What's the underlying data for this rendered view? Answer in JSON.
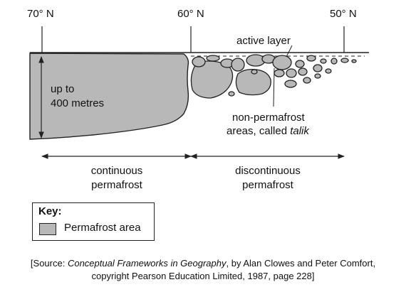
{
  "latitudes": {
    "lat_70": "70° N",
    "lat_60": "60° N",
    "lat_50": "50° N"
  },
  "labels": {
    "active_layer": "active layer",
    "depth_line1": "up to",
    "depth_line2": "400 metres",
    "talik_line1": "non-permafrost",
    "talik_line2_prefix": "areas, called ",
    "talik_line2_italic": "talik",
    "continuous_line1": "continuous",
    "continuous_line2": "permafrost",
    "discontinuous_line1": "discontinuous",
    "discontinuous_line2": "permafrost"
  },
  "key": {
    "title": "Key:",
    "item": "Permafrost area",
    "swatch_color": "#b8b8b8"
  },
  "source": {
    "prefix": "[Source: ",
    "title": "Conceptual Frameworks in Geography",
    "line1_suffix": ", by Alan Clowes and Peter Comfort,",
    "line2": "copyright Pearson Education Limited, 1987, page 228]"
  },
  "colors": {
    "permafrost_fill": "#b8b8b8",
    "stroke": "#222222"
  }
}
